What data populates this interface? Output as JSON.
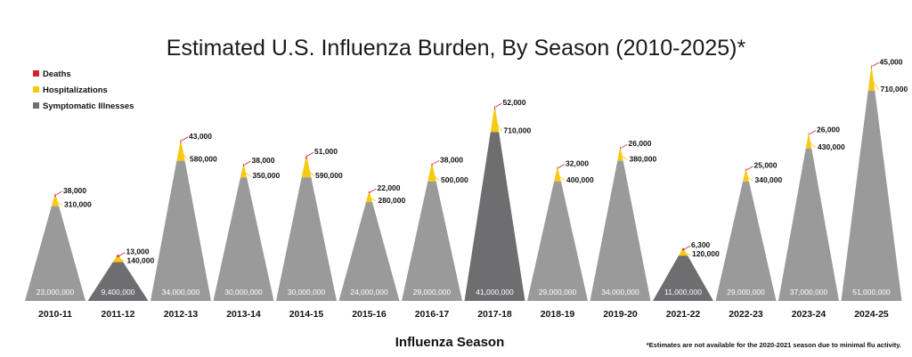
{
  "chart_data": {
    "type": "area",
    "title": "Estimated U.S. Influenza Burden, By Season (2010-2025)*",
    "xlabel": "Influenza Season",
    "footnote": "*Estimates are not available for the 2020-2021 season due to minimal flu activity.",
    "legend": {
      "placement": "top-left",
      "items": [
        {
          "name": "Deaths",
          "color": "#d7222a"
        },
        {
          "name": "Hospitalizations",
          "color": "#f6c913"
        },
        {
          "name": "Symptomatic Illnesses",
          "color": "#707070"
        }
      ]
    },
    "categories": [
      "2010-11",
      "2011-12",
      "2012-13",
      "2013-14",
      "2014-15",
      "2015-16",
      "2016-17",
      "2017-18",
      "2018-19",
      "2019-20",
      "2021-22",
      "2022-23",
      "2023-24",
      "2024-25"
    ],
    "series": [
      {
        "name": "Symptomatic Illnesses",
        "values": [
          23000000,
          9400000,
          34000000,
          30000000,
          30000000,
          24000000,
          29000000,
          41000000,
          29000000,
          34000000,
          11000000,
          29000000,
          37000000,
          51000000
        ],
        "labels": [
          "23,000,000",
          "9,400,000",
          "34,000,000",
          "30,000,000",
          "30,000,000",
          "24,000,000",
          "29,000,000",
          "41,000,000",
          "29,000,000",
          "34,000,000",
          "11,000,000",
          "29,000,000",
          "37,000,000",
          "51,000,000"
        ]
      },
      {
        "name": "Hospitalizations",
        "values": [
          310000,
          140000,
          580000,
          350000,
          590000,
          280000,
          500000,
          710000,
          400000,
          380000,
          120000,
          340000,
          430000,
          710000
        ],
        "labels": [
          "310,000",
          "140,000",
          "580,000",
          "350,000",
          "590,000",
          "280,000",
          "500,000",
          "710,000",
          "400,000",
          "380,000",
          "120,000",
          "340,000",
          "430,000",
          "710,000"
        ]
      },
      {
        "name": "Deaths",
        "values": [
          38000,
          13000,
          43000,
          38000,
          51000,
          22000,
          38000,
          52000,
          32000,
          26000,
          6300,
          25000,
          26000,
          45000
        ],
        "labels": [
          "38,000",
          "13,000",
          "43,000",
          "38,000",
          "51,000",
          "22,000",
          "38,000",
          "52,000",
          "32,000",
          "26,000",
          "6,300",
          "25,000",
          "26,000",
          "45,000"
        ]
      }
    ],
    "colors": {
      "illness_light": "#9a9a9a",
      "illness_dark": "#6e6e70",
      "hospitalizations": "#f6c913",
      "deaths": "#d7222a",
      "leader": "#d7222a"
    }
  }
}
